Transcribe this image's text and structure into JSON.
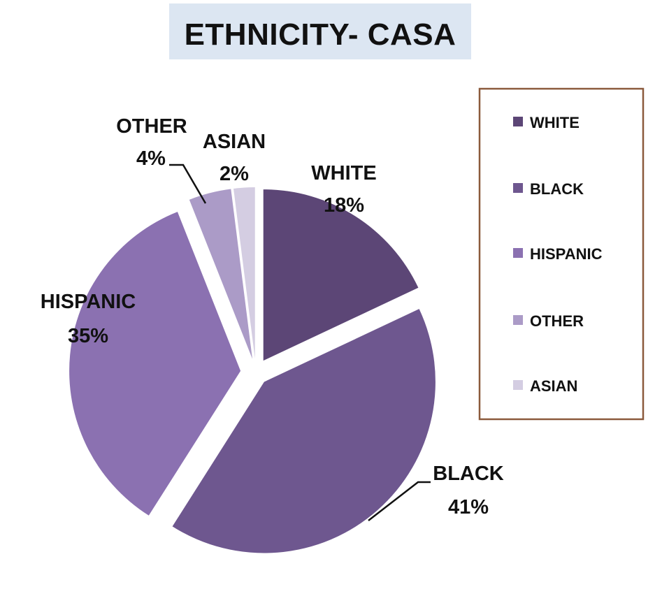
{
  "chart_data": {
    "type": "pie",
    "title": "ETHNICITY- CASA",
    "slices": [
      {
        "label": "WHITE",
        "value": 18,
        "value_label": "18%",
        "color": "#5c4676"
      },
      {
        "label": "BLACK",
        "value": 41,
        "value_label": "41%",
        "color": "#6e578f"
      },
      {
        "label": "HISPANIC",
        "value": 35,
        "value_label": "35%",
        "color": "#8b71b1"
      },
      {
        "label": "OTHER",
        "value": 4,
        "value_label": "4%",
        "color": "#ab9bc7"
      },
      {
        "label": "ASIAN",
        "value": 2,
        "value_label": "2%",
        "color": "#d4cde2"
      }
    ],
    "legend": {
      "position": "right",
      "entries": [
        "WHITE",
        "BLACK",
        "HISPANIC",
        "OTHER",
        "ASIAN"
      ],
      "border_color": "#8b5a3c"
    },
    "title_background": "#dce6f2",
    "exploded": true
  }
}
